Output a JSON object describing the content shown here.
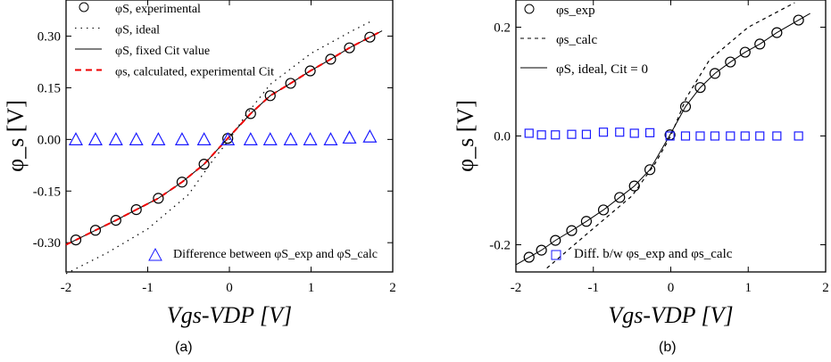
{
  "chart_data": [
    {
      "type": "scatter",
      "panel": "(a)",
      "xlabel": "V_gs-V_DP [V]",
      "ylabel": "φ_s [V]",
      "xlim": [
        -2,
        2
      ],
      "ylim": [
        -0.385,
        0.405
      ],
      "xticks": [
        "-2",
        "-1",
        "0",
        "1",
        "2"
      ],
      "yticks": [
        "-0.30",
        "-0.15",
        "0.00",
        "0.15",
        "0.30"
      ],
      "legend": [
        "φS, experimental",
        "φS, ideal",
        "φS, fixed Cit value",
        "φs, calculated, experimental Cit",
        "Difference between φS_exp and φS_calc"
      ],
      "x": [
        -1.88,
        -1.64,
        -1.39,
        -1.14,
        -0.87,
        -0.58,
        -0.31,
        -0.02,
        0.26,
        0.5,
        0.75,
        0.99,
        1.24,
        1.47,
        1.72
      ],
      "experimental": [
        -0.292,
        -0.264,
        -0.235,
        -0.204,
        -0.171,
        -0.124,
        -0.072,
        0.003,
        0.075,
        0.127,
        0.163,
        0.199,
        0.233,
        0.266,
        0.297
      ],
      "difference": [
        0.0,
        0.0,
        0.0,
        0.0,
        0.0,
        0.0,
        0.0,
        0.0,
        0.0,
        0.0,
        0.0,
        0.0,
        0.0,
        0.005,
        0.008
      ],
      "ideal_x": [
        -2,
        -1.5,
        -1,
        -0.5,
        -0.2,
        0,
        0.2,
        0.5,
        1,
        1.5,
        1.75
      ],
      "ideal": [
        -0.39,
        -0.33,
        -0.26,
        -0.16,
        -0.06,
        0,
        0.07,
        0.16,
        0.25,
        0.315,
        0.345
      ]
    },
    {
      "type": "scatter",
      "panel": "(b)",
      "xlabel": "V_gs-V_DP [V]",
      "ylabel": "φ_s [V]",
      "xlim": [
        -2,
        2
      ],
      "ylim": [
        -0.25,
        0.25
      ],
      "xticks": [
        "-2",
        "-1",
        "0",
        "1",
        "2"
      ],
      "yticks": [
        "-0.2",
        "0.0",
        "0.2"
      ],
      "legend": [
        "φs_exp",
        "φs_calc",
        "φS, ideal, Cit = 0",
        "Diff. b/w φs_exp and φs_calc"
      ],
      "x": [
        -1.83,
        -1.67,
        -1.49,
        -1.28,
        -1.09,
        -0.87,
        -0.66,
        -0.47,
        -0.27,
        -0.01,
        0.19,
        0.38,
        0.57,
        0.77,
        0.96,
        1.15,
        1.37,
        1.65
      ],
      "experimental": [
        -0.223,
        -0.21,
        -0.192,
        -0.174,
        -0.157,
        -0.136,
        -0.113,
        -0.092,
        -0.062,
        0.002,
        0.054,
        0.089,
        0.115,
        0.136,
        0.154,
        0.169,
        0.19,
        0.213
      ],
      "difference": [
        0.005,
        0.002,
        0.002,
        0.003,
        0.003,
        0.007,
        0.007,
        0.005,
        0.006,
        0.0,
        0.0,
        0.0,
        0.0,
        0.0,
        0.0,
        0.0,
        0.0,
        0.0
      ],
      "ideal_x": [
        -1.6,
        -1,
        -0.5,
        -0.2,
        0,
        0.2,
        0.5,
        1,
        1.6
      ],
      "ideal": [
        -0.243,
        -0.17,
        -0.11,
        -0.05,
        0,
        0.07,
        0.14,
        0.2,
        0.245
      ]
    }
  ],
  "captions": [
    "(a)",
    "(b)"
  ]
}
